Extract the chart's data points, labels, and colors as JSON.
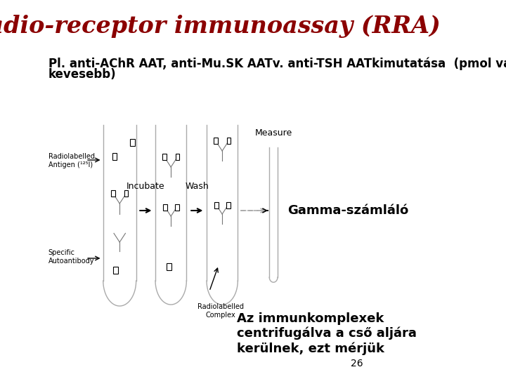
{
  "title": "Radio-receptor immunoassay (RRA)",
  "title_color": "#8B0000",
  "title_fontsize": 24,
  "subtitle_line1": "Pl. anti-AChR AAT, anti-Mu.SK AATv. anti-TSH AATkimutatása  (pmol vagy annál",
  "subtitle_line2": "kevesebb)",
  "subtitle_fontsize": 12,
  "subtitle_color": "#000000",
  "gamma_label": "Gamma-számláló",
  "bottom_text": "Az immunkomplexek\ncentrifugálva a cső aljára\nkerülnek, ezt mérjük",
  "page_number": "26",
  "background_color": "#ffffff"
}
